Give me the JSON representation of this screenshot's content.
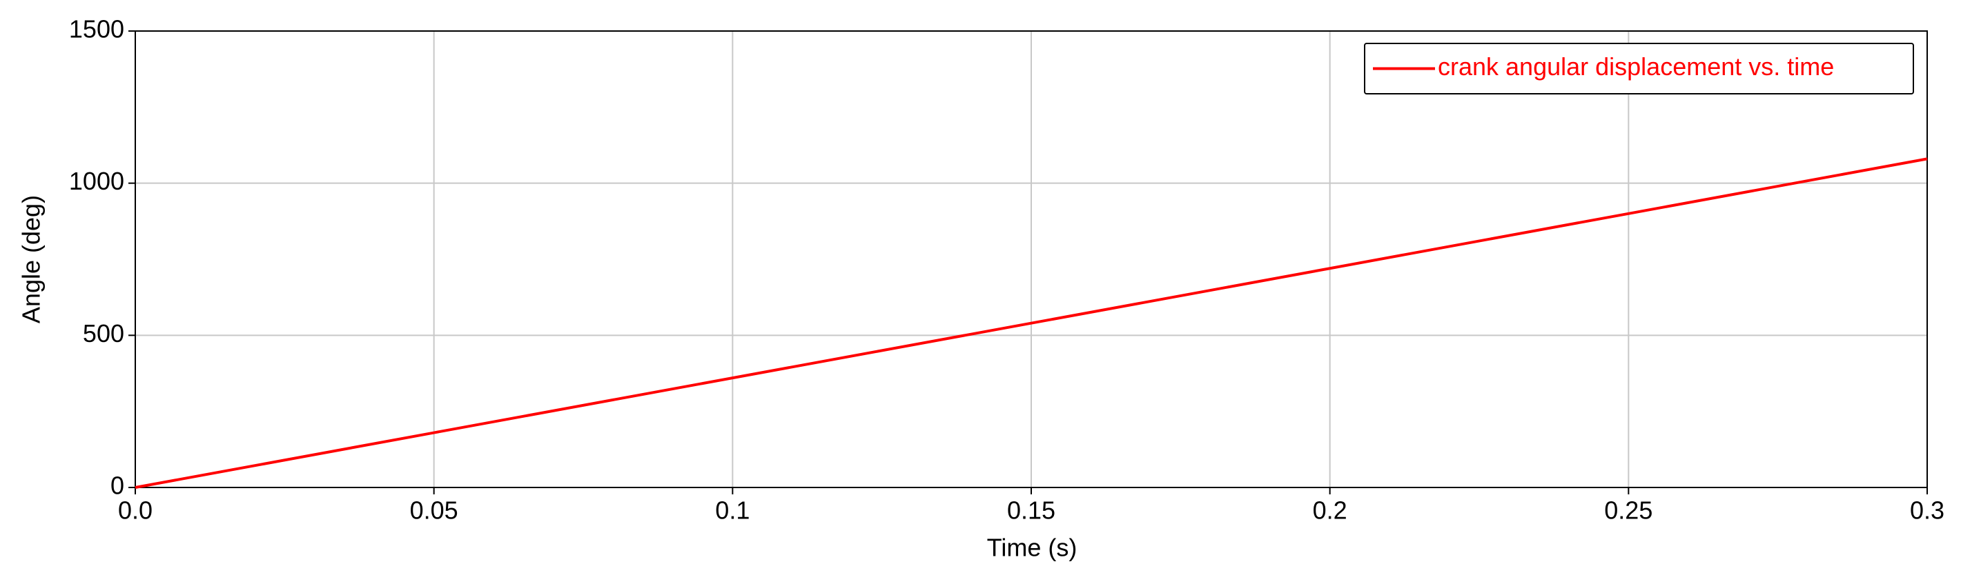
{
  "chart_data": {
    "type": "line",
    "xlabel": "Time (s)",
    "ylabel": "Angle (deg)",
    "x": [
      0,
      0.05,
      0.1,
      0.15,
      0.2,
      0.25,
      0.3
    ],
    "series": [
      {
        "name": "crank angular displacement vs. time",
        "color": "#ff0000",
        "values": [
          0,
          180,
          360,
          540,
          720,
          900,
          1080
        ]
      }
    ],
    "xlim": [
      0,
      0.3
    ],
    "ylim": [
      0,
      1500
    ],
    "xticks": [
      {
        "value": 0,
        "label": "0.0"
      },
      0.05,
      0.1,
      0.15,
      0.2,
      0.25,
      0.3
    ],
    "yticks": [
      0,
      500,
      1000,
      1500
    ],
    "grid": true,
    "legend": "upper right"
  }
}
